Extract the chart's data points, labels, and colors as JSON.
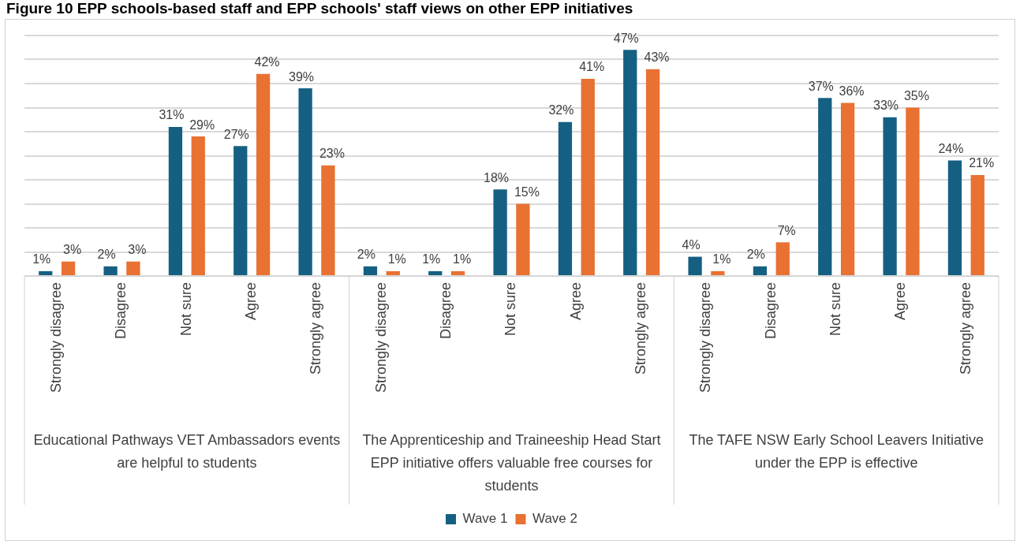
{
  "chart_data": {
    "type": "bar",
    "title": "Figure 10 EPP schools-based staff and EPP schools' staff views on other EPP initiatives",
    "categories": [
      "Strongly disagree",
      "Disagree",
      "Not sure",
      "Agree",
      "Strongly agree",
      "Strongly disagree",
      "Disagree",
      "Not sure",
      "Agree",
      "Strongly agree",
      "Strongly disagree",
      "Disagree",
      "Not sure",
      "Agree",
      "Strongly agree"
    ],
    "series": [
      {
        "name": "Wave 1",
        "color": "#156082",
        "values": [
          1,
          2,
          31,
          27,
          39,
          2,
          1,
          18,
          32,
          47,
          4,
          2,
          37,
          33,
          24
        ],
        "value_labels": [
          "1%",
          "2%",
          "31%",
          "27%",
          "39%",
          "2%",
          "1%",
          "18%",
          "32%",
          "47%",
          "4%",
          "2%",
          "37%",
          "33%",
          "24%"
        ]
      },
      {
        "name": "Wave 2",
        "color": "#e97132",
        "values": [
          3,
          3,
          29,
          42,
          23,
          1,
          1,
          15,
          41,
          43,
          1,
          7,
          36,
          35,
          21
        ],
        "value_labels": [
          "3%",
          "3%",
          "29%",
          "42%",
          "23%",
          "1%",
          "1%",
          "15%",
          "41%",
          "43%",
          "1%",
          "7%",
          "36%",
          "35%",
          "21%"
        ]
      }
    ],
    "annotations": [
      "Educational Pathways VET Ambassadors events are helpful to students",
      "The Apprenticeship and Traineeship Head Start EPP initiative offers valuable free courses for students",
      "The TAFE NSW Early School Leavers Initiative under the EPP is effective"
    ],
    "tick_labels": "x",
    "grid": "y",
    "legend": "bottom"
  }
}
